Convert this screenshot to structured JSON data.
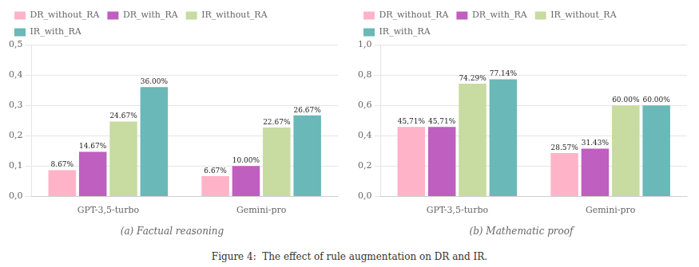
{
  "title": "Figure 4:  The effect of rule augmentation on DR and IR.",
  "chart_data": [
    {
      "type": "bar",
      "title": "(a) Factual reasoning",
      "categories": [
        "GPT-3,5-turbo",
        "Gemini-pro"
      ],
      "series": [
        {
          "name": "DR_without_RA",
          "color": "#ffb3c8",
          "values": [
            0.0867,
            0.0667
          ],
          "value_labels": [
            "8.67%",
            "6.67%"
          ]
        },
        {
          "name": "DR_with_RA",
          "color": "#bf5fbf",
          "values": [
            0.1467,
            0.1
          ],
          "value_labels": [
            "14.67%",
            "10.00%"
          ]
        },
        {
          "name": "IR_without_RA",
          "color": "#c8dba0",
          "values": [
            0.2467,
            0.2267
          ],
          "value_labels": [
            "24.67%",
            "22.67%"
          ]
        },
        {
          "name": "IR_with_RA",
          "color": "#6ab8b8",
          "values": [
            0.36,
            0.2667
          ],
          "value_labels": [
            "36.00%",
            "26.67%"
          ]
        }
      ],
      "ylim": [
        0,
        0.5
      ],
      "yticks": [
        {
          "value": 0.0,
          "label": "0,0"
        },
        {
          "value": 0.1,
          "label": "0,1"
        },
        {
          "value": 0.2,
          "label": "0,2"
        },
        {
          "value": 0.3,
          "label": "0,3"
        },
        {
          "value": 0.4,
          "label": "0,4"
        },
        {
          "value": 0.5,
          "label": "0,5"
        }
      ],
      "grid": true,
      "legend": "upper left",
      "data_labels": true
    },
    {
      "type": "bar",
      "title": "(b) Mathematic proof",
      "categories": [
        "GPT-3,5-turbo",
        "Gemini-pro"
      ],
      "series": [
        {
          "name": "DR_without_RA",
          "color": "#ffb3c8",
          "values": [
            0.4571,
            0.2857
          ],
          "value_labels": [
            "45,71%",
            "28.57%"
          ]
        },
        {
          "name": "DR_with_RA",
          "color": "#bf5fbf",
          "values": [
            0.4571,
            0.3143
          ],
          "value_labels": [
            "45,71%",
            "31.43%"
          ]
        },
        {
          "name": "IR_without_RA",
          "color": "#c8dba0",
          "values": [
            0.7429,
            0.6
          ],
          "value_labels": [
            "74.29%",
            "60.00%"
          ]
        },
        {
          "name": "IR_with_RA",
          "color": "#6ab8b8",
          "values": [
            0.7714,
            0.6
          ],
          "value_labels": [
            "77.14%",
            "60.00%"
          ]
        }
      ],
      "ylim": [
        0,
        1.0
      ],
      "yticks": [
        {
          "value": 0.0,
          "label": "0,0"
        },
        {
          "value": 0.2,
          "label": "0,2"
        },
        {
          "value": 0.4,
          "label": "0,4"
        },
        {
          "value": 0.6,
          "label": "0,6"
        },
        {
          "value": 0.8,
          "label": "0,8"
        },
        {
          "value": 1.0,
          "label": "1,0"
        }
      ],
      "grid": true,
      "legend": "upper left",
      "data_labels": true
    }
  ]
}
